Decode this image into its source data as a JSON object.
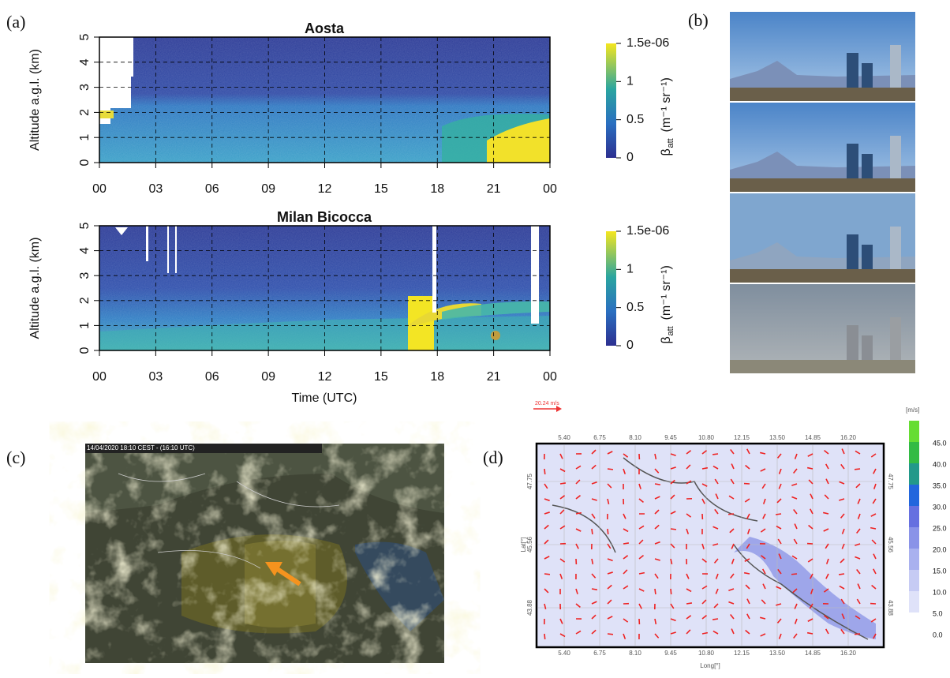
{
  "panels": {
    "a": {
      "label": "(a)",
      "xlabel": "Time (UTC)",
      "plots": [
        {
          "title": "Aosta",
          "ylabel": "Altitude a.g.l. (km)",
          "ylim": [
            0,
            5
          ],
          "yticks": [
            0,
            1,
            2,
            3,
            4,
            5
          ],
          "xticks": [
            "00",
            "03",
            "06",
            "09",
            "12",
            "15",
            "18",
            "21",
            "00"
          ],
          "colorbar": {
            "symbol": "β",
            "sub": "att",
            "unit": "(m⁻¹ sr⁻¹)",
            "lim": [
              0,
              1.5e-06
            ],
            "ticks": [
              {
                "value": 1.5e-06,
                "label": "1.5e-06"
              },
              {
                "value": 1e-06,
                "label": "1"
              },
              {
                "value": 5e-07,
                "label": "0.5"
              },
              0
            ]
          }
        },
        {
          "title": "Milan Bicocca",
          "ylabel": "Altitude a.g.l. (km)",
          "ylim": [
            0,
            5
          ],
          "yticks": [
            0,
            1,
            2,
            3,
            4,
            5
          ],
          "xticks": [
            "00",
            "03",
            "06",
            "09",
            "12",
            "15",
            "18",
            "21",
            "00"
          ],
          "colorbar": {
            "symbol": "β",
            "sub": "att",
            "unit": "(m⁻¹ sr⁻¹)",
            "lim": [
              0,
              1.5e-06
            ],
            "ticks": [
              {
                "value": 1.5e-06,
                "label": "1.5e-06"
              },
              {
                "value": 1e-06,
                "label": "1"
              },
              {
                "value": 5e-07,
                "label": "0.5"
              },
              0
            ]
          }
        }
      ]
    },
    "b": {
      "label": "(b)"
    },
    "c": {
      "label": "(c)",
      "timestamp": "14/04/2020 18:10 CEST - (16:10 UTC)"
    },
    "d": {
      "label": "(d)",
      "wind_ref": "20.24 m/s",
      "unit": "[m/s]",
      "xlabel": "Long[°]",
      "ylabel": "Lat[°]",
      "lon_ticks": [
        "5.40",
        "6.75",
        "8.10",
        "9.45",
        "10.80",
        "12.15",
        "13.50",
        "14.85",
        "16.20"
      ],
      "lat_ticks": [
        "47.75",
        "45.56",
        "43.88"
      ],
      "scale": [
        {
          "label": "45.0",
          "color": "#66dd33"
        },
        {
          "label": "40.0",
          "color": "#33bb44"
        },
        {
          "label": "35.0",
          "color": "#22998a"
        },
        {
          "label": "30.0",
          "color": "#2266dd"
        },
        {
          "label": "25.0",
          "color": "#6670e0"
        },
        {
          "label": "20.0",
          "color": "#8a93e8"
        },
        {
          "label": "15.0",
          "color": "#a9b1ef"
        },
        {
          "label": "10.0",
          "color": "#c6cbf4"
        },
        {
          "label": "5.0",
          "color": "#dfe2f9"
        },
        {
          "label": "0.0",
          "color": "#ffffff"
        }
      ]
    }
  }
}
